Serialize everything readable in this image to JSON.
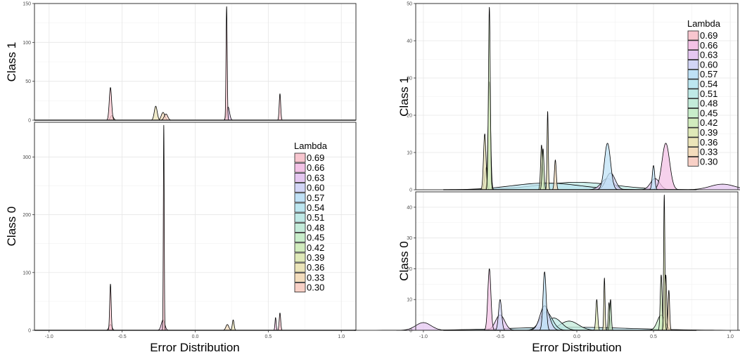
{
  "chart_data": [
    {
      "type": "area",
      "description": "Faceted density plots of error distribution by Lambda (left figure)",
      "xlabel": "Error Distribution",
      "xlim": [
        -1.1,
        1.1
      ],
      "x_ticks": [
        "-1.0",
        "-0.5",
        "0.0",
        "0.5",
        "1.0"
      ],
      "legend": {
        "title": "Lambda",
        "placement": "right, inside bottom panel"
      },
      "grid": true,
      "panels": [
        {
          "label": "Class 1",
          "ylim": [
            0,
            150
          ],
          "y_ticks": [
            "0",
            "50",
            "100",
            "150"
          ],
          "peaks": [
            {
              "x": -0.58,
              "height": 42,
              "width": 0.008,
              "lambda": "0.69"
            },
            {
              "x": -0.57,
              "height": 6,
              "width": 0.01,
              "lambda": "0.33"
            },
            {
              "x": -0.27,
              "height": 18,
              "width": 0.01,
              "lambda": "0.36"
            },
            {
              "x": -0.22,
              "height": 10,
              "width": 0.012,
              "lambda": "0.33"
            },
            {
              "x": -0.2,
              "height": 8,
              "width": 0.012,
              "lambda": "0.30"
            },
            {
              "x": 0.215,
              "height": 146,
              "width": 0.004,
              "lambda": "0.69"
            },
            {
              "x": 0.225,
              "height": 17,
              "width": 0.01,
              "lambda": "0.63"
            },
            {
              "x": 0.58,
              "height": 34,
              "width": 0.005,
              "lambda": "0.69"
            }
          ]
        },
        {
          "label": "Class 0",
          "ylim": [
            0,
            360
          ],
          "y_ticks": [
            "0",
            "100",
            "200",
            "300"
          ],
          "peaks": [
            {
              "x": -0.58,
              "height": 80,
              "width": 0.005,
              "lambda": "0.69"
            },
            {
              "x": -0.58,
              "height": 10,
              "width": 0.01,
              "lambda": "0.66"
            },
            {
              "x": -0.215,
              "height": 355,
              "width": 0.003,
              "lambda": "0.69"
            },
            {
              "x": -0.22,
              "height": 18,
              "width": 0.012,
              "lambda": "0.66"
            },
            {
              "x": 0.22,
              "height": 10,
              "width": 0.01,
              "lambda": "0.33"
            },
            {
              "x": 0.26,
              "height": 18,
              "width": 0.006,
              "lambda": "0.36"
            },
            {
              "x": 0.55,
              "height": 22,
              "width": 0.004,
              "lambda": "0.66"
            },
            {
              "x": 0.58,
              "height": 30,
              "width": 0.005,
              "lambda": "0.69"
            }
          ]
        }
      ]
    },
    {
      "type": "area",
      "description": "Faceted density plots of error distribution by Lambda (right figure)",
      "xlabel": "Error Distribution",
      "xlim": [
        -1.05,
        1.05
      ],
      "x_ticks": [
        "-1.0",
        "-0.5",
        "0.0",
        "0.5",
        "1.0"
      ],
      "legend": {
        "title": "Lambda",
        "placement": "top-right, inside top panel"
      },
      "grid": true,
      "panels": [
        {
          "label": "Class 1",
          "ylim": [
            0,
            50
          ],
          "y_ticks": [
            "0",
            "10",
            "20",
            "30",
            "40",
            "50"
          ],
          "peaks": [
            {
              "x": -0.57,
              "height": 49,
              "width": 0.006,
              "lambda": "0.42"
            },
            {
              "x": -0.57,
              "height": 29,
              "width": 0.008,
              "lambda": "0.39"
            },
            {
              "x": -0.6,
              "height": 15,
              "width": 0.008,
              "lambda": "0.36"
            },
            {
              "x": -0.59,
              "height": 6,
              "width": 0.01,
              "lambda": "0.45"
            },
            {
              "x": -0.23,
              "height": 12,
              "width": 0.006,
              "lambda": "0.39"
            },
            {
              "x": -0.22,
              "height": 11,
              "width": 0.006,
              "lambda": "0.42"
            },
            {
              "x": -0.19,
              "height": 21,
              "width": 0.004,
              "lambda": "0.36"
            },
            {
              "x": -0.14,
              "height": 8,
              "width": 0.006,
              "lambda": "0.33"
            },
            {
              "x": 0.2,
              "height": 12.5,
              "width": 0.02,
              "lambda": "0.57"
            },
            {
              "x": 0.22,
              "height": 4.5,
              "width": 0.03,
              "lambda": "0.60"
            },
            {
              "x": 0.2,
              "height": 3,
              "width": 0.04,
              "lambda": "0.63"
            },
            {
              "x": 0.5,
              "height": 6.5,
              "width": 0.008,
              "lambda": "0.57"
            },
            {
              "x": 0.51,
              "height": 3,
              "width": 0.03,
              "lambda": "0.63"
            },
            {
              "x": 0.58,
              "height": 12.5,
              "width": 0.025,
              "lambda": "0.66"
            },
            {
              "x": 0.0,
              "height": 2,
              "width": 0.25,
              "lambda": "0.51"
            },
            {
              "x": -0.2,
              "height": 1.8,
              "width": 0.22,
              "lambda": "0.54"
            },
            {
              "x": 0.95,
              "height": 1.5,
              "width": 0.08,
              "lambda": "0.63"
            }
          ]
        },
        {
          "label": "Class 0",
          "ylim": [
            0,
            45
          ],
          "y_ticks": [
            "0",
            "10",
            "20",
            "30",
            "40"
          ],
          "peaks": [
            {
              "x": -1.0,
              "height": 2.5,
              "width": 0.05,
              "lambda": "0.63"
            },
            {
              "x": -0.57,
              "height": 20,
              "width": 0.01,
              "lambda": "0.66"
            },
            {
              "x": -0.5,
              "height": 10,
              "width": 0.01,
              "lambda": "0.60"
            },
            {
              "x": -0.5,
              "height": 5,
              "width": 0.03,
              "lambda": "0.63"
            },
            {
              "x": -0.21,
              "height": 19,
              "width": 0.01,
              "lambda": "0.57"
            },
            {
              "x": -0.21,
              "height": 8,
              "width": 0.03,
              "lambda": "0.60"
            },
            {
              "x": -0.2,
              "height": 6,
              "width": 0.04,
              "lambda": "0.54"
            },
            {
              "x": -0.15,
              "height": 4,
              "width": 0.05,
              "lambda": "0.51"
            },
            {
              "x": -0.05,
              "height": 3,
              "width": 0.06,
              "lambda": "0.48"
            },
            {
              "x": 0.13,
              "height": 10,
              "width": 0.006,
              "lambda": "0.39"
            },
            {
              "x": 0.18,
              "height": 17,
              "width": 0.004,
              "lambda": "0.36"
            },
            {
              "x": 0.21,
              "height": 9,
              "width": 0.005,
              "lambda": "0.42"
            },
            {
              "x": 0.22,
              "height": 10,
              "width": 0.005,
              "lambda": "0.45"
            },
            {
              "x": 0.55,
              "height": 18,
              "width": 0.006,
              "lambda": "0.42"
            },
            {
              "x": 0.57,
              "height": 44,
              "width": 0.004,
              "lambda": "0.39"
            },
            {
              "x": 0.58,
              "height": 18,
              "width": 0.006,
              "lambda": "0.36"
            },
            {
              "x": 0.6,
              "height": 13,
              "width": 0.005,
              "lambda": "0.33"
            },
            {
              "x": 0.55,
              "height": 5,
              "width": 0.025,
              "lambda": "0.45"
            },
            {
              "x": -0.05,
              "height": 1,
              "width": 0.4,
              "lambda": "0.54"
            }
          ]
        }
      ]
    }
  ],
  "lambda_levels": [
    {
      "label": "0.69",
      "color": "#f8c6cf"
    },
    {
      "label": "0.66",
      "color": "#f3c2e6"
    },
    {
      "label": "0.63",
      "color": "#e5c7f1"
    },
    {
      "label": "0.60",
      "color": "#d2d5f6"
    },
    {
      "label": "0.57",
      "color": "#bfe1f6"
    },
    {
      "label": "0.54",
      "color": "#bce6f0"
    },
    {
      "label": "0.51",
      "color": "#bfe9e6"
    },
    {
      "label": "0.48",
      "color": "#c3ebd9"
    },
    {
      "label": "0.45",
      "color": "#c8edca"
    },
    {
      "label": "0.42",
      "color": "#d1ecbd"
    },
    {
      "label": "0.39",
      "color": "#dfe9b8"
    },
    {
      "label": "0.36",
      "color": "#ebe4b8"
    },
    {
      "label": "0.33",
      "color": "#f3dcbc"
    },
    {
      "label": "0.30",
      "color": "#f8d0c6"
    }
  ]
}
